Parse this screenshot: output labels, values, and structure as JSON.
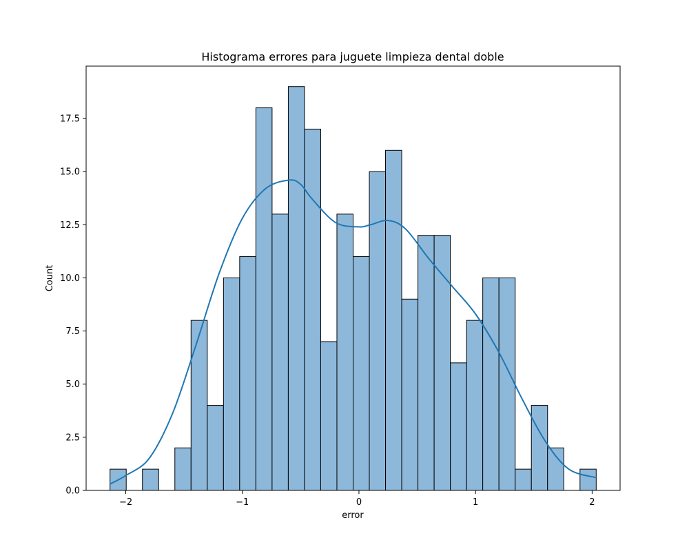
{
  "chart_data": {
    "type": "bar",
    "title": "Histograma errores para juguete limpieza dental doble",
    "xlabel": "error",
    "ylabel": "Count",
    "bin_edges": [
      -2.135,
      -1.996,
      -1.857,
      -1.718,
      -1.579,
      -1.44,
      -1.301,
      -1.162,
      -1.023,
      -0.884,
      -0.745,
      -0.606,
      -0.467,
      -0.328,
      -0.189,
      -0.05,
      0.089,
      0.228,
      0.367,
      0.506,
      0.645,
      0.784,
      0.923,
      1.062,
      1.201,
      1.34,
      1.479,
      1.618,
      1.757,
      1.896,
      2.035
    ],
    "values": [
      1,
      0,
      1,
      0,
      2,
      8,
      4,
      10,
      11,
      18,
      13,
      19,
      17,
      7,
      13,
      11,
      15,
      16,
      9,
      12,
      12,
      6,
      8,
      10,
      10,
      1,
      4,
      2,
      0,
      1
    ],
    "kde": {
      "x": [
        -2.135,
        -2.0,
        -1.8,
        -1.6,
        -1.4,
        -1.2,
        -1.0,
        -0.8,
        -0.6,
        -0.5,
        -0.4,
        -0.2,
        0.0,
        0.1,
        0.25,
        0.4,
        0.6,
        0.8,
        1.0,
        1.2,
        1.4,
        1.6,
        1.8,
        2.035
      ],
      "y": [
        0.3,
        0.7,
        1.5,
        3.6,
        6.8,
        10.2,
        12.8,
        14.2,
        14.6,
        14.4,
        13.7,
        12.6,
        12.4,
        12.5,
        12.7,
        12.3,
        10.9,
        9.6,
        8.3,
        6.5,
        4.3,
        2.3,
        1.0,
        0.6
      ]
    },
    "xticks": [
      -2,
      -1,
      0,
      1,
      2
    ],
    "xtick_labels": [
      "−2",
      "−1",
      "0",
      "1",
      "2"
    ],
    "yticks": [
      0.0,
      2.5,
      5.0,
      7.5,
      10.0,
      12.5,
      15.0,
      17.5
    ],
    "ytick_labels": [
      "0.0",
      "2.5",
      "5.0",
      "7.5",
      "10.0",
      "12.5",
      "15.0",
      "17.5"
    ],
    "xlim": [
      -2.34,
      2.24
    ],
    "ylim": [
      0,
      19.0
    ],
    "grid": false,
    "bar_color": "#8db8da",
    "bar_edge_color": "#000000",
    "kde_color": "#1f77b4"
  }
}
